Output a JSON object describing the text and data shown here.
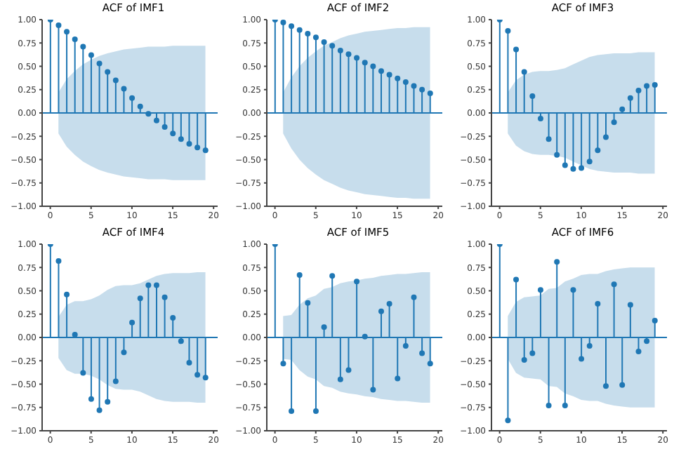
{
  "chart_data": [
    {
      "type": "lollipop",
      "title": "ACF of IMF1",
      "x": [
        0,
        1,
        2,
        3,
        4,
        5,
        6,
        7,
        8,
        9,
        10,
        11,
        12,
        13,
        14,
        15,
        16,
        17,
        18,
        19
      ],
      "xlim": [
        -1,
        20.5
      ],
      "xticks": [
        0,
        5,
        10,
        15,
        20
      ],
      "ylim": [
        -1,
        1
      ],
      "yticks": [
        {
          "value": -1,
          "label": "−1.00"
        },
        {
          "value": -0.75,
          "label": "−0.75"
        },
        {
          "value": -0.5,
          "label": "−0.50"
        },
        {
          "value": -0.25,
          "label": "−0.25"
        },
        {
          "value": 0,
          "label": "0.00"
        },
        {
          "value": 0.25,
          "label": "0.25"
        },
        {
          "value": 0.5,
          "label": "0.50"
        },
        {
          "value": 0.75,
          "label": "0.75"
        },
        {
          "value": 1,
          "label": "1.00"
        }
      ],
      "grid": false,
      "marker": "circle",
      "ref_lines": [
        {
          "axis": "y",
          "value": 0,
          "color": "#1f77b4"
        }
      ],
      "series": [
        {
          "color": "#1f77b4",
          "values": [
            1,
            0.94,
            0.87,
            0.79,
            0.71,
            0.62,
            0.53,
            0.44,
            0.35,
            0.26,
            0.16,
            0.07,
            -0.01,
            -0.08,
            -0.15,
            -0.22,
            -0.28,
            -0.33,
            -0.37,
            -0.4
          ],
          "upper": [
            null,
            0.22,
            0.36,
            0.45,
            0.52,
            0.57,
            0.61,
            0.64,
            0.66,
            0.68,
            0.69,
            0.7,
            0.71,
            0.71,
            0.71,
            0.72,
            0.72,
            0.72,
            0.72,
            0.72
          ],
          "lower": [
            null,
            -0.22,
            -0.36,
            -0.45,
            -0.52,
            -0.57,
            -0.61,
            -0.64,
            -0.66,
            -0.68,
            -0.69,
            -0.7,
            -0.71,
            -0.71,
            -0.71,
            -0.72,
            -0.72,
            -0.72,
            -0.72,
            -0.72
          ]
        }
      ]
    },
    {
      "type": "lollipop",
      "title": "ACF of IMF2",
      "x": [
        0,
        1,
        2,
        3,
        4,
        5,
        6,
        7,
        8,
        9,
        10,
        11,
        12,
        13,
        14,
        15,
        16,
        17,
        18,
        19
      ],
      "xlim": [
        -1,
        20.5
      ],
      "xticks": [
        0,
        5,
        10,
        15,
        20
      ],
      "ylim": [
        -1,
        1
      ],
      "yticks": [
        {
          "value": -1,
          "label": "−1.00"
        },
        {
          "value": -0.75,
          "label": "−0.75"
        },
        {
          "value": -0.5,
          "label": "−0.50"
        },
        {
          "value": -0.25,
          "label": "−0.25"
        },
        {
          "value": 0,
          "label": "0.00"
        },
        {
          "value": 0.25,
          "label": "0.25"
        },
        {
          "value": 0.5,
          "label": "0.50"
        },
        {
          "value": 0.75,
          "label": "0.75"
        },
        {
          "value": 1,
          "label": "1.00"
        }
      ],
      "grid": false,
      "marker": "circle",
      "ref_lines": [
        {
          "axis": "y",
          "value": 0,
          "color": "#1f77b4"
        }
      ],
      "series": [
        {
          "color": "#1f77b4",
          "values": [
            1,
            0.97,
            0.93,
            0.89,
            0.85,
            0.81,
            0.76,
            0.72,
            0.67,
            0.63,
            0.59,
            0.54,
            0.5,
            0.45,
            0.41,
            0.37,
            0.33,
            0.29,
            0.25,
            0.21
          ],
          "upper": [
            null,
            0.22,
            0.38,
            0.5,
            0.59,
            0.66,
            0.72,
            0.76,
            0.8,
            0.83,
            0.85,
            0.87,
            0.88,
            0.89,
            0.9,
            0.91,
            0.91,
            0.92,
            0.92,
            0.92
          ],
          "lower": [
            null,
            -0.22,
            -0.38,
            -0.5,
            -0.59,
            -0.66,
            -0.72,
            -0.76,
            -0.8,
            -0.83,
            -0.85,
            -0.87,
            -0.88,
            -0.89,
            -0.9,
            -0.91,
            -0.91,
            -0.92,
            -0.92,
            -0.92
          ]
        }
      ]
    },
    {
      "type": "lollipop",
      "title": "ACF of IMF3",
      "x": [
        0,
        1,
        2,
        3,
        4,
        5,
        6,
        7,
        8,
        9,
        10,
        11,
        12,
        13,
        14,
        15,
        16,
        17,
        18,
        19
      ],
      "xlim": [
        -1,
        20.5
      ],
      "xticks": [
        0,
        5,
        10,
        15,
        20
      ],
      "ylim": [
        -1,
        1
      ],
      "yticks": [
        {
          "value": -1,
          "label": "−1.00"
        },
        {
          "value": -0.75,
          "label": "−0.75"
        },
        {
          "value": -0.5,
          "label": "−0.50"
        },
        {
          "value": -0.25,
          "label": "−0.25"
        },
        {
          "value": 0,
          "label": "0.00"
        },
        {
          "value": 0.25,
          "label": "0.25"
        },
        {
          "value": 0.5,
          "label": "0.50"
        },
        {
          "value": 0.75,
          "label": "0.75"
        },
        {
          "value": 1,
          "label": "1.00"
        }
      ],
      "grid": false,
      "marker": "circle",
      "ref_lines": [
        {
          "axis": "y",
          "value": 0,
          "color": "#1f77b4"
        }
      ],
      "series": [
        {
          "color": "#1f77b4",
          "values": [
            1,
            0.88,
            0.68,
            0.44,
            0.18,
            -0.06,
            -0.28,
            -0.45,
            -0.56,
            -0.6,
            -0.59,
            -0.52,
            -0.4,
            -0.26,
            -0.1,
            0.04,
            0.16,
            0.24,
            0.29,
            0.3
          ],
          "upper": [
            null,
            0.22,
            0.35,
            0.41,
            0.44,
            0.45,
            0.45,
            0.46,
            0.48,
            0.52,
            0.56,
            0.6,
            0.62,
            0.63,
            0.64,
            0.64,
            0.64,
            0.65,
            0.65,
            0.65
          ],
          "lower": [
            null,
            -0.22,
            -0.35,
            -0.41,
            -0.44,
            -0.45,
            -0.45,
            -0.46,
            -0.48,
            -0.52,
            -0.56,
            -0.6,
            -0.62,
            -0.63,
            -0.64,
            -0.64,
            -0.64,
            -0.65,
            -0.65,
            -0.65
          ]
        }
      ]
    },
    {
      "type": "lollipop",
      "title": "ACF of IMF4",
      "x": [
        0,
        1,
        2,
        3,
        4,
        5,
        6,
        7,
        8,
        9,
        10,
        11,
        12,
        13,
        14,
        15,
        16,
        17,
        18,
        19
      ],
      "xlim": [
        -1,
        20.5
      ],
      "xticks": [
        0,
        5,
        10,
        15,
        20
      ],
      "ylim": [
        -1,
        1
      ],
      "yticks": [
        {
          "value": -1,
          "label": "−1.00"
        },
        {
          "value": -0.75,
          "label": "−0.75"
        },
        {
          "value": -0.5,
          "label": "−0.50"
        },
        {
          "value": -0.25,
          "label": "−0.25"
        },
        {
          "value": 0,
          "label": "0.00"
        },
        {
          "value": 0.25,
          "label": "0.25"
        },
        {
          "value": 0.5,
          "label": "0.50"
        },
        {
          "value": 0.75,
          "label": "0.75"
        },
        {
          "value": 1,
          "label": "1.00"
        }
      ],
      "grid": false,
      "marker": "circle",
      "ref_lines": [
        {
          "axis": "y",
          "value": 0,
          "color": "#1f77b4"
        }
      ],
      "series": [
        {
          "color": "#1f77b4",
          "values": [
            1,
            0.82,
            0.46,
            0.03,
            -0.38,
            -0.66,
            -0.78,
            -0.69,
            -0.47,
            -0.16,
            0.16,
            0.42,
            0.56,
            0.56,
            0.43,
            0.21,
            -0.04,
            -0.27,
            -0.4,
            -0.43
          ],
          "upper": [
            null,
            0.22,
            0.35,
            0.39,
            0.39,
            0.41,
            0.45,
            0.51,
            0.55,
            0.56,
            0.56,
            0.58,
            0.62,
            0.66,
            0.68,
            0.69,
            0.69,
            0.69,
            0.7,
            0.7
          ],
          "lower": [
            null,
            -0.22,
            -0.35,
            -0.39,
            -0.39,
            -0.41,
            -0.45,
            -0.51,
            -0.55,
            -0.56,
            -0.56,
            -0.58,
            -0.62,
            -0.66,
            -0.68,
            -0.69,
            -0.69,
            -0.69,
            -0.7,
            -0.7
          ]
        }
      ]
    },
    {
      "type": "lollipop",
      "title": "ACF of IMF5",
      "x": [
        0,
        1,
        2,
        3,
        4,
        5,
        6,
        7,
        8,
        9,
        10,
        11,
        12,
        13,
        14,
        15,
        16,
        17,
        18,
        19
      ],
      "xlim": [
        -1,
        20.5
      ],
      "xticks": [
        0,
        5,
        10,
        15,
        20
      ],
      "ylim": [
        -1,
        1
      ],
      "yticks": [
        {
          "value": -1,
          "label": "−1.00"
        },
        {
          "value": -0.75,
          "label": "−0.75"
        },
        {
          "value": -0.5,
          "label": "−0.50"
        },
        {
          "value": -0.25,
          "label": "−0.25"
        },
        {
          "value": 0,
          "label": "0.00"
        },
        {
          "value": 0.25,
          "label": "0.25"
        },
        {
          "value": 0.5,
          "label": "0.50"
        },
        {
          "value": 0.75,
          "label": "0.75"
        },
        {
          "value": 1,
          "label": "1.00"
        }
      ],
      "grid": false,
      "marker": "circle",
      "ref_lines": [
        {
          "axis": "y",
          "value": 0,
          "color": "#1f77b4"
        }
      ],
      "series": [
        {
          "color": "#1f77b4",
          "values": [
            1,
            -0.28,
            -0.79,
            0.67,
            0.37,
            -0.79,
            0.11,
            0.66,
            -0.45,
            -0.35,
            0.6,
            0.01,
            -0.56,
            0.28,
            0.36,
            -0.44,
            -0.09,
            0.43,
            -0.17,
            -0.28
          ],
          "upper": [
            null,
            0.23,
            0.24,
            0.35,
            0.42,
            0.45,
            0.52,
            0.54,
            0.58,
            0.6,
            0.61,
            0.63,
            0.64,
            0.66,
            0.67,
            0.68,
            0.68,
            0.69,
            0.7,
            0.7
          ],
          "lower": [
            null,
            -0.23,
            -0.24,
            -0.35,
            -0.42,
            -0.45,
            -0.52,
            -0.54,
            -0.58,
            -0.6,
            -0.61,
            -0.63,
            -0.64,
            -0.66,
            -0.67,
            -0.68,
            -0.68,
            -0.69,
            -0.7,
            -0.7
          ]
        }
      ]
    },
    {
      "type": "lollipop",
      "title": "ACF of IMF6",
      "x": [
        0,
        1,
        2,
        3,
        4,
        5,
        6,
        7,
        8,
        9,
        10,
        11,
        12,
        13,
        14,
        15,
        16,
        17,
        18,
        19
      ],
      "xlim": [
        -1,
        20.5
      ],
      "xticks": [
        0,
        5,
        10,
        15,
        20
      ],
      "ylim": [
        -1,
        1
      ],
      "yticks": [
        {
          "value": -1,
          "label": "−1.00"
        },
        {
          "value": -0.75,
          "label": "−0.75"
        },
        {
          "value": -0.5,
          "label": "−0.50"
        },
        {
          "value": -0.25,
          "label": "−0.25"
        },
        {
          "value": 0,
          "label": "0.00"
        },
        {
          "value": 0.25,
          "label": "0.25"
        },
        {
          "value": 0.5,
          "label": "0.50"
        },
        {
          "value": 0.75,
          "label": "0.75"
        },
        {
          "value": 1,
          "label": "1.00"
        }
      ],
      "grid": false,
      "marker": "circle",
      "ref_lines": [
        {
          "axis": "y",
          "value": 0,
          "color": "#1f77b4"
        }
      ],
      "series": [
        {
          "color": "#1f77b4",
          "values": [
            1,
            -0.89,
            0.62,
            -0.24,
            -0.17,
            0.51,
            -0.73,
            0.81,
            -0.73,
            0.51,
            -0.23,
            -0.09,
            0.36,
            -0.52,
            0.57,
            -0.51,
            0.35,
            -0.15,
            -0.04,
            0.18
          ],
          "upper": [
            null,
            0.23,
            0.38,
            0.43,
            0.44,
            0.45,
            0.52,
            0.53,
            0.6,
            0.63,
            0.67,
            0.68,
            0.68,
            0.71,
            0.73,
            0.74,
            0.75,
            0.75,
            0.75,
            0.75
          ],
          "lower": [
            null,
            -0.23,
            -0.38,
            -0.43,
            -0.44,
            -0.45,
            -0.52,
            -0.53,
            -0.6,
            -0.63,
            -0.67,
            -0.68,
            -0.68,
            -0.71,
            -0.73,
            -0.74,
            -0.75,
            -0.75,
            -0.75,
            -0.75
          ]
        }
      ]
    }
  ]
}
